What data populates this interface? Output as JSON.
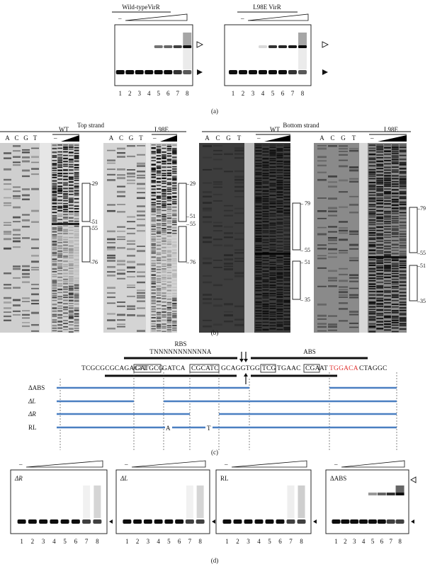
{
  "panel_a": {
    "caption": "(a)",
    "groups": [
      {
        "title": "Wild-typeVirR",
        "minus": "–"
      },
      {
        "title": "L98E VirR",
        "minus": "–"
      }
    ],
    "lanes": [
      "1",
      "2",
      "3",
      "4",
      "5",
      "6",
      "7",
      "8"
    ]
  },
  "panel_b": {
    "caption": "(b)",
    "top_strand": "Top strand",
    "bottom_strand": "Bottom strand",
    "seq_lanes": [
      "A",
      "C",
      "G",
      "T"
    ],
    "minus": "–",
    "wt": "WT",
    "l98e": "L98E",
    "top_marks": [
      "29",
      "51",
      "55",
      "76"
    ],
    "bottom_marks": [
      "79",
      "55",
      "51",
      "35"
    ]
  },
  "panel_c": {
    "caption": "(c)",
    "rbs_label": "RBS",
    "rbs_consensus": "TNNNNNNNNNNNA",
    "abs_label": "ABS",
    "seq": {
      "s1": "TCGCGCGCAGACTT",
      "b1": "GATGCG",
      "s2": "GATCA",
      "b2": "CGCATC",
      "s3": "GCAGGTGG",
      "b3": "TCG",
      "s4": "TGAAC",
      "b4": "CGA",
      "s5": "AT",
      "red": "TGGACA",
      "s6": "CTAGGC"
    },
    "red_color": "#e0312f",
    "line_color": "#4a7fc1",
    "rows": [
      "ΔABS",
      "ΔL",
      "ΔR",
      "RL"
    ],
    "rl_sub1": "A",
    "rl_sub2": "T"
  },
  "panel_d": {
    "caption": "(d)",
    "panels": [
      "ΔR",
      "ΔL",
      "RL",
      "ΔABS"
    ],
    "minus": "–",
    "lanes": [
      "1",
      "2",
      "3",
      "4",
      "5",
      "6",
      "7",
      "8"
    ]
  }
}
